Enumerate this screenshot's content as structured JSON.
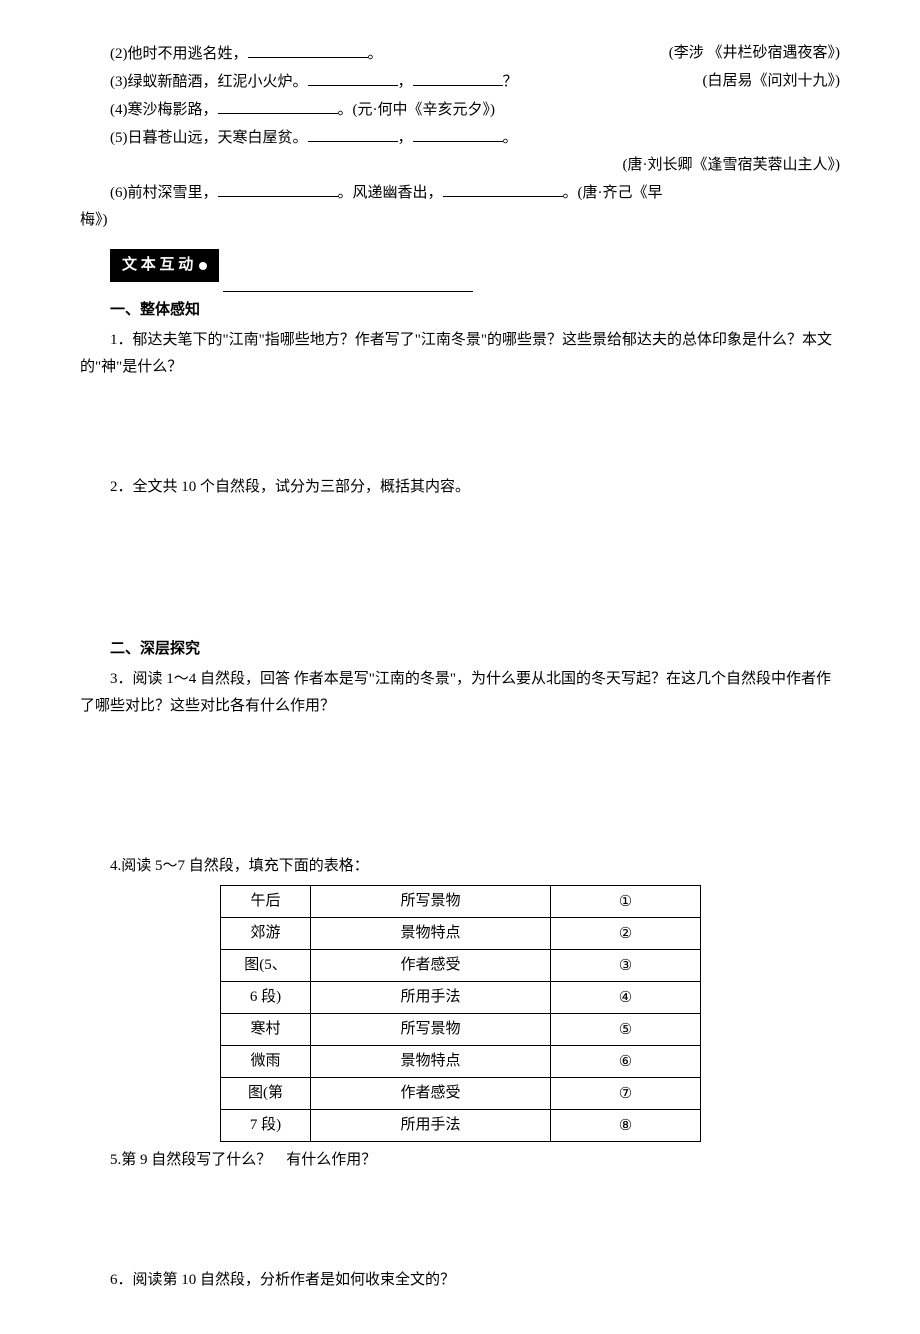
{
  "fills": {
    "line2_prefix": "(2)他时不用逃名姓，",
    "line2_suffix": "。",
    "line2_source": "(李涉 《井栏砂宿遇夜客》)",
    "line3_prefix": "(3)绿蚁新醅酒，红泥小火炉。",
    "line3_mid": "，",
    "line3_suffix": "？",
    "line3_source": "(白居易《问刘十九》)",
    "line4_prefix": "(4)寒沙梅影路，",
    "line4_suffix": "。(元·何中《辛亥元夕》)",
    "line5_prefix": "(5)日暮苍山远，天寒白屋贫。",
    "line5_mid": "，",
    "line5_suffix": "。",
    "line5_source": "(唐·刘长卿《逢雪宿芙蓉山主人》)",
    "line6_prefix": "(6)前村深雪里，",
    "line6_mid": "。风递幽香出，",
    "line6_suffix": "。(唐·齐己《早",
    "line6_cont": "梅》)"
  },
  "badge": {
    "label": "文 本 互 动"
  },
  "sections": {
    "s1_title": "一、整体感知",
    "q1": "1．郁达夫笔下的\"江南\"指哪些地方？作者写了\"江南冬景\"的哪些景？这些景给郁达夫的总体印象是什么？本文的\"神\"是什么？",
    "q2": "2．全文共 10 个自然段，试分为三部分，概括其内容。",
    "s2_title": "二、深层探究",
    "q3": "3．阅读 1～4 自然段，回答 作者本是写\"江南的冬景\"，为什么要从北国的冬天写起？在这几个自然段中作者作了哪些对比？这些对比各有什么作用？",
    "q4": "4.阅读 5～7 自然段，填充下面的表格：",
    "q5": "5.第 9 自然段写了什么？　有什么作用？",
    "q6": "6．阅读第 10 自然段，分析作者是如何收束全文的？"
  },
  "table": {
    "group1_label_l1": "午后",
    "group1_label_l2": "郊游",
    "group1_label_l3": "图(5、",
    "group1_label_l4": "6 段)",
    "group2_label_l1": "寒村",
    "group2_label_l2": "微雨",
    "group2_label_l3": "图(第",
    "group2_label_l4": "7 段)",
    "row_labels": {
      "r1": "所写景物",
      "r2": "景物特点",
      "r3": "作者感受",
      "r4": "所用手法"
    },
    "nums": {
      "n1": "①",
      "n2": "②",
      "n3": "③",
      "n4": "④",
      "n5": "⑤",
      "n6": "⑥",
      "n7": "⑦",
      "n8": "⑧"
    }
  },
  "style": {
    "background": "#ffffff",
    "text_color": "#000000",
    "font_size": 15,
    "badge_bg": "#000000",
    "badge_fg": "#ffffff",
    "border_color": "#000000"
  }
}
